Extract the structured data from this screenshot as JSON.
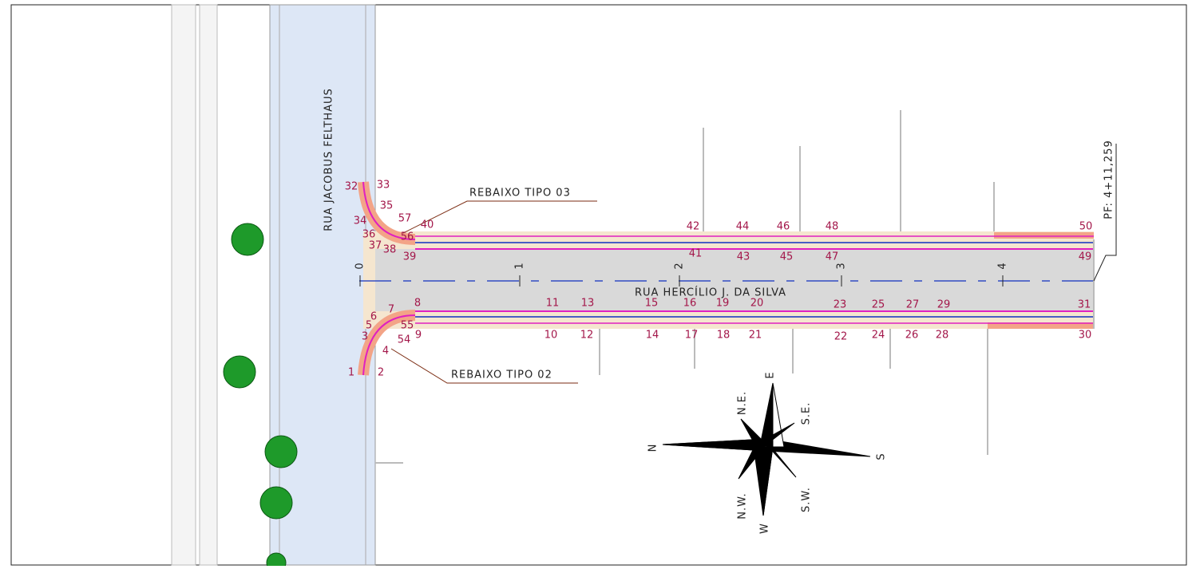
{
  "streets": {
    "vertical": "RUA JACOBUS FELTHAUS",
    "horizontal": "RUA HERCÍLIO J. DA SILVA"
  },
  "stations": [
    "0",
    "1",
    "2",
    "3",
    "4"
  ],
  "end_station": "PF: 4+11,259",
  "callouts": [
    "REBAIXO TIPO 03",
    "REBAIXO TIPO 02"
  ],
  "compass": {
    "north": "N",
    "south": "S",
    "east": "E",
    "west": "W",
    "northeast": "N.E.",
    "southeast": "S.E.",
    "northwest": "N.W.",
    "southwest": "S.W."
  },
  "points": [
    "1",
    "2",
    "3",
    "4",
    "5",
    "6",
    "7",
    "8",
    "9",
    "10",
    "11",
    "12",
    "13",
    "14",
    "15",
    "16",
    "17",
    "18",
    "19",
    "20",
    "21",
    "22",
    "23",
    "24",
    "25",
    "26",
    "27",
    "28",
    "29",
    "30",
    "31",
    "32",
    "33",
    "34",
    "35",
    "36",
    "37",
    "38",
    "39",
    "40",
    "41",
    "42",
    "43",
    "44",
    "45",
    "46",
    "47",
    "48",
    "49",
    "50",
    "54",
    "55",
    "56",
    "57"
  ]
}
